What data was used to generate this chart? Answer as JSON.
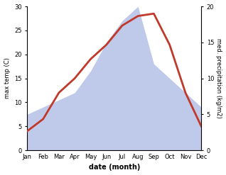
{
  "months": [
    "Jan",
    "Feb",
    "Mar",
    "Apr",
    "May",
    "Jun",
    "Jul",
    "Aug",
    "Sep",
    "Oct",
    "Nov",
    "Dec"
  ],
  "temp": [
    4,
    6.5,
    12,
    15,
    19,
    22,
    26,
    28,
    28.5,
    22,
    12,
    5
  ],
  "precip": [
    5,
    6,
    7,
    8,
    11,
    15,
    18,
    20,
    12,
    10,
    8,
    6
  ],
  "temp_color": "#c0392b",
  "precip_color_fill": "#b8c4e8",
  "bg_color": "#ffffff",
  "temp_ylim": [
    0,
    30
  ],
  "precip_ylim": [
    0,
    20
  ],
  "xlabel": "date (month)",
  "ylabel_left": "max temp (C)",
  "ylabel_right": "med. precipitation (kg/m2)",
  "temp_lw": 2.0,
  "yticks_left": [
    0,
    5,
    10,
    15,
    20,
    25,
    30
  ],
  "yticks_right": [
    0,
    5,
    10,
    15,
    20
  ]
}
